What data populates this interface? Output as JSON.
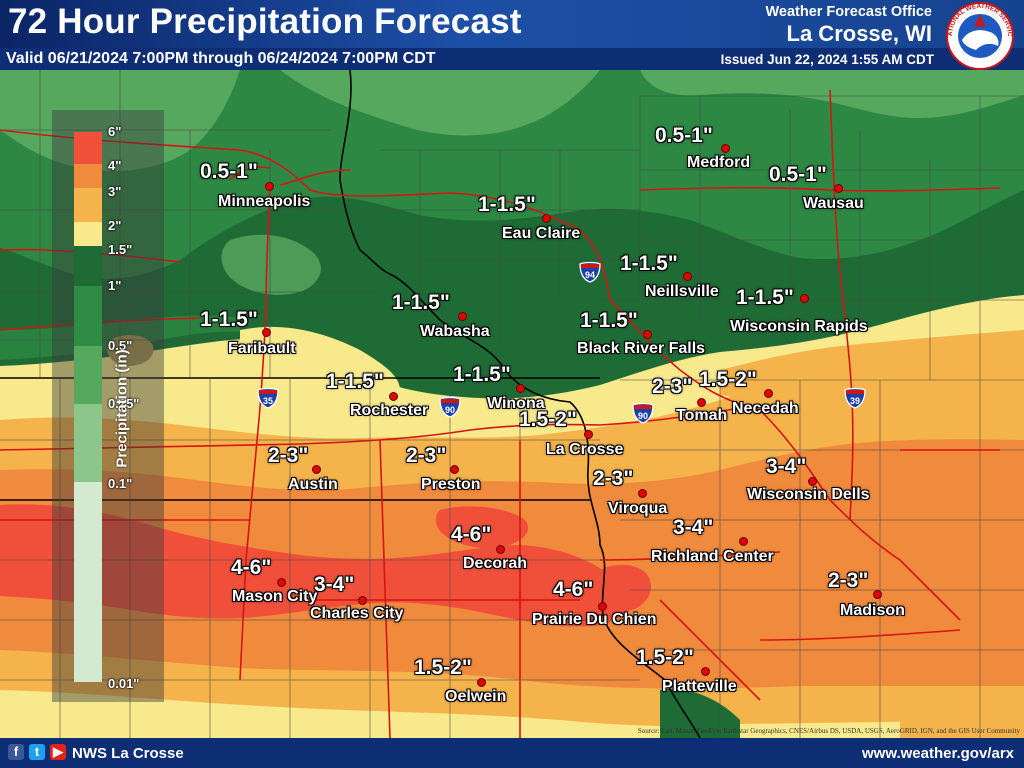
{
  "header": {
    "title": "72 Hour Precipitation Forecast",
    "valid": "Valid 06/21/2024 7:00PM through 06/24/2024 7:00PM CDT",
    "office": "Weather Forecast Office",
    "office_city": "La Crosse, WI",
    "issued": "Issued Jun 22, 2024 1:55 AM CDT",
    "logo_text": "NATIONAL WEATHER SERVICE"
  },
  "legend": {
    "title": "Precipitation (in)",
    "labels": [
      "6\"",
      "4\"",
      "3\"",
      "2\"",
      "1.5\"",
      "1\"",
      "0.5\"",
      "0.25\"",
      "0.1\"",
      "0.01\""
    ],
    "colors": [
      "#f0503a",
      "#f08a3d",
      "#f5b34c",
      "#f8e98d",
      "#1e6b35",
      "#2f8c45",
      "#57a85f",
      "#8dc68a",
      "#b5dab2",
      "#d3ead0"
    ]
  },
  "locations": [
    {
      "name": "Minneapolis",
      "amount": "0.5-1\""
    },
    {
      "name": "Eau Claire",
      "amount": "1-1.5\""
    },
    {
      "name": "Medford",
      "amount": "0.5-1\""
    },
    {
      "name": "Wausau",
      "amount": "0.5-1\""
    },
    {
      "name": "Neillsville",
      "amount": "1-1.5\""
    },
    {
      "name": "Wisconsin Rapids",
      "amount": "1-1.5\""
    },
    {
      "name": "Wabasha",
      "amount": "1-1.5\""
    },
    {
      "name": "Faribault",
      "amount": "1-1.5\""
    },
    {
      "name": "Black River Falls",
      "amount": "1-1.5\""
    },
    {
      "name": "Rochester",
      "amount": "1-1.5\""
    },
    {
      "name": "Winona",
      "amount": "1-1.5\""
    },
    {
      "name": "Tomah",
      "amount": "2-3\""
    },
    {
      "name": "Necedah",
      "amount": "1.5-2\""
    },
    {
      "name": "La Crosse",
      "amount": "1.5-2\""
    },
    {
      "name": "Austin",
      "amount": "2-3\""
    },
    {
      "name": "Preston",
      "amount": "2-3\""
    },
    {
      "name": "Viroqua",
      "amount": "2-3\""
    },
    {
      "name": "Wisconsin Dells",
      "amount": "3-4\""
    },
    {
      "name": "Decorah",
      "amount": "4-6\""
    },
    {
      "name": "Richland Center",
      "amount": "3-4\""
    },
    {
      "name": "Mason City",
      "amount": "4-6\""
    },
    {
      "name": "Charles City",
      "amount": "3-4\""
    },
    {
      "name": "Prairie Du Chien",
      "amount": "4-6\""
    },
    {
      "name": "Madison",
      "amount": "2-3\""
    },
    {
      "name": "Oelwein",
      "amount": "1.5-2\""
    },
    {
      "name": "Platteville",
      "amount": "1.5-2\""
    }
  ],
  "interstates": [
    {
      "number": "94"
    },
    {
      "number": "90"
    },
    {
      "number": "90"
    },
    {
      "number": "35"
    },
    {
      "number": "39"
    }
  ],
  "footer": {
    "handle": "NWS La Crosse",
    "url": "www.weather.gov/arx",
    "attribution": "Source: Esri, Maxar, GeoEye, Earthstar Geographics, CNES/Airbus DS, USDA, USGS, AeroGRID, IGN, and the GIS User Community"
  }
}
